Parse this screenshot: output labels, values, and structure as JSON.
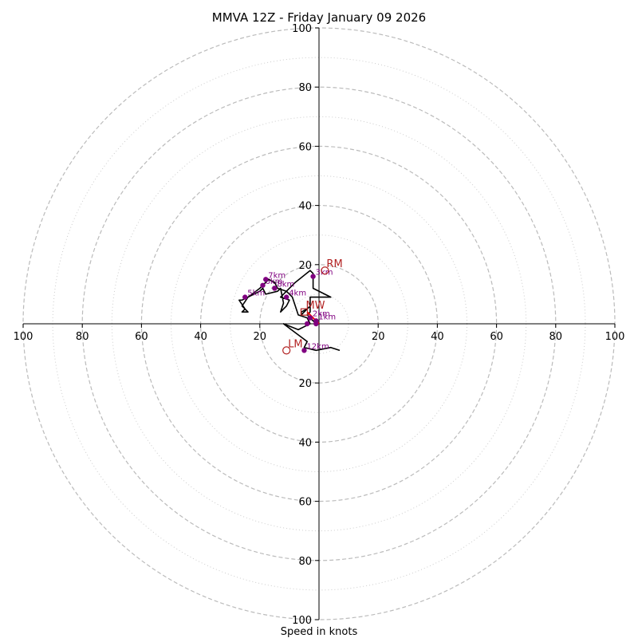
{
  "chart_data": {
    "type": "hodograph",
    "title": "MMVA 12Z - Friday January 09 2026",
    "xlabel": "Speed in knots",
    "units": "knots",
    "max_speed": 100,
    "rings_major": [
      20,
      40,
      60,
      80,
      100
    ],
    "rings_minor": [
      10,
      30,
      50,
      70,
      90
    ],
    "x_tick_labels": [
      "100",
      "80",
      "60",
      "40",
      "20",
      "20",
      "40",
      "60",
      "80",
      "100"
    ],
    "y_tick_labels": [
      "100",
      "80",
      "60",
      "40",
      "20",
      "20",
      "40",
      "60",
      "80",
      "100"
    ],
    "hodograph_line": [
      [
        -1,
        0
      ],
      [
        -3,
        2
      ],
      [
        -4,
        3
      ],
      [
        -3,
        4
      ],
      [
        -3,
        6
      ],
      [
        -4,
        5
      ],
      [
        -6,
        4
      ],
      [
        -6,
        3
      ],
      [
        -3,
        6
      ],
      [
        -3,
        9
      ],
      [
        4,
        9
      ],
      [
        -2,
        12
      ],
      [
        -2,
        17
      ],
      [
        -3,
        18
      ],
      [
        -8,
        14
      ],
      [
        -13,
        9
      ],
      [
        -10,
        8
      ],
      [
        -11,
        6
      ],
      [
        -13,
        4
      ],
      [
        -12,
        7
      ],
      [
        -13,
        12
      ],
      [
        -14,
        11
      ],
      [
        -18,
        10
      ],
      [
        -19,
        12
      ],
      [
        -20,
        11
      ],
      [
        -26,
        8
      ],
      [
        -27,
        8
      ],
      [
        -25,
        5
      ],
      [
        -26,
        4
      ],
      [
        -24,
        4
      ],
      [
        -26,
        6
      ],
      [
        -24,
        9
      ],
      [
        -20,
        12
      ],
      [
        -17,
        15
      ],
      [
        -15,
        14
      ],
      [
        -14,
        12
      ],
      [
        -11,
        11
      ],
      [
        -9,
        9
      ],
      [
        -7,
        3
      ],
      [
        -4,
        2
      ],
      [
        -3,
        0
      ],
      [
        -5,
        -1
      ],
      [
        -7,
        -2
      ],
      [
        -12,
        0
      ],
      [
        -8,
        -3
      ],
      [
        -4,
        -6
      ],
      [
        -5,
        -8
      ],
      [
        -1,
        -9
      ],
      [
        4,
        -8
      ],
      [
        7,
        -9
      ]
    ],
    "height_markers": [
      {
        "label": "",
        "u": -1,
        "v": 0
      },
      {
        "label": "",
        "u": -4,
        "v": 0
      },
      {
        "label": "2km",
        "u": -3,
        "v": 2
      },
      {
        "label": "1km",
        "u": -1,
        "v": 1
      },
      {
        "label": "3km",
        "u": -2,
        "v": 16
      },
      {
        "label": "4km",
        "u": -11,
        "v": 9
      },
      {
        "label": "5km",
        "u": -25,
        "v": 9
      },
      {
        "label": "6km",
        "u": -19,
        "v": 13
      },
      {
        "label": "7km",
        "u": -18,
        "v": 15
      },
      {
        "label": "8km",
        "u": -15,
        "v": 12
      },
      {
        "label": "12km",
        "u": -5,
        "v": -9
      }
    ],
    "storm_motion": [
      {
        "label": "RM",
        "u": 2,
        "v": 18
      },
      {
        "label": "LM",
        "u": -11,
        "v": -9
      },
      {
        "label": "MW",
        "u": -5,
        "v": 4
      }
    ],
    "mean_wind_vector": {
      "from": [
        0,
        0
      ],
      "to": [
        -4,
        4
      ]
    }
  }
}
